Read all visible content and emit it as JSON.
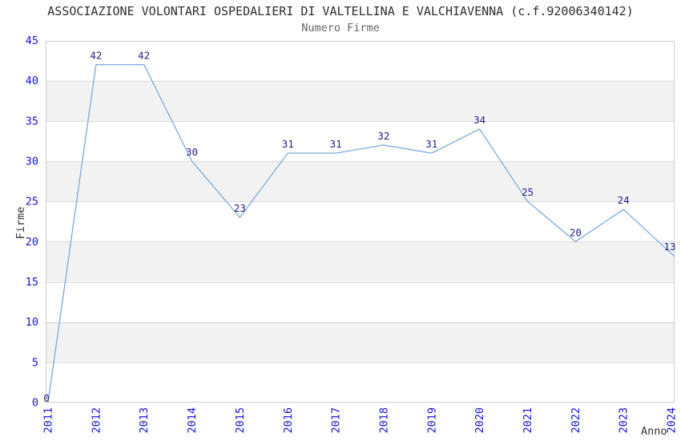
{
  "chart_data": {
    "type": "line",
    "title": "ASSOCIAZIONE VOLONTARI OSPEDALIERI DI VALTELLINA E VALCHIAVENNA (c.f.92006340142)",
    "subtitle": "Numero Firme",
    "xlabel": "Anno",
    "ylabel": "Firme",
    "x": [
      2011,
      2012,
      2013,
      2014,
      2015,
      2016,
      2017,
      2018,
      2019,
      2020,
      2021,
      2022,
      2023,
      2024
    ],
    "values": [
      0,
      42,
      42,
      30,
      23,
      31,
      31,
      32,
      31,
      34,
      25,
      20,
      24,
      13
    ],
    "ylim": [
      0,
      45
    ],
    "ytick_step": 5,
    "yticks": [
      0,
      5,
      10,
      15,
      20,
      25,
      30,
      35,
      40,
      45
    ],
    "grid": "horizontal-only",
    "plot_bands": "alternating white/gray every 5 units, gray for 5-10, 15-20, 25-30, 35-40",
    "legend": "none",
    "point_labels_shown": true,
    "last_point_clipped_at_right_border": true,
    "colors": {
      "line": "#7aabdf",
      "tick_labels": "#1515dd",
      "point_labels": "#23238c",
      "band_gray": "#f2f2f2",
      "gridline": "#dcdcdc",
      "plot_border": "#cccccc",
      "title": "#2e2e2e",
      "subtitle": "#666666",
      "axis_titles": "#333333",
      "background": "#ffffff"
    }
  }
}
